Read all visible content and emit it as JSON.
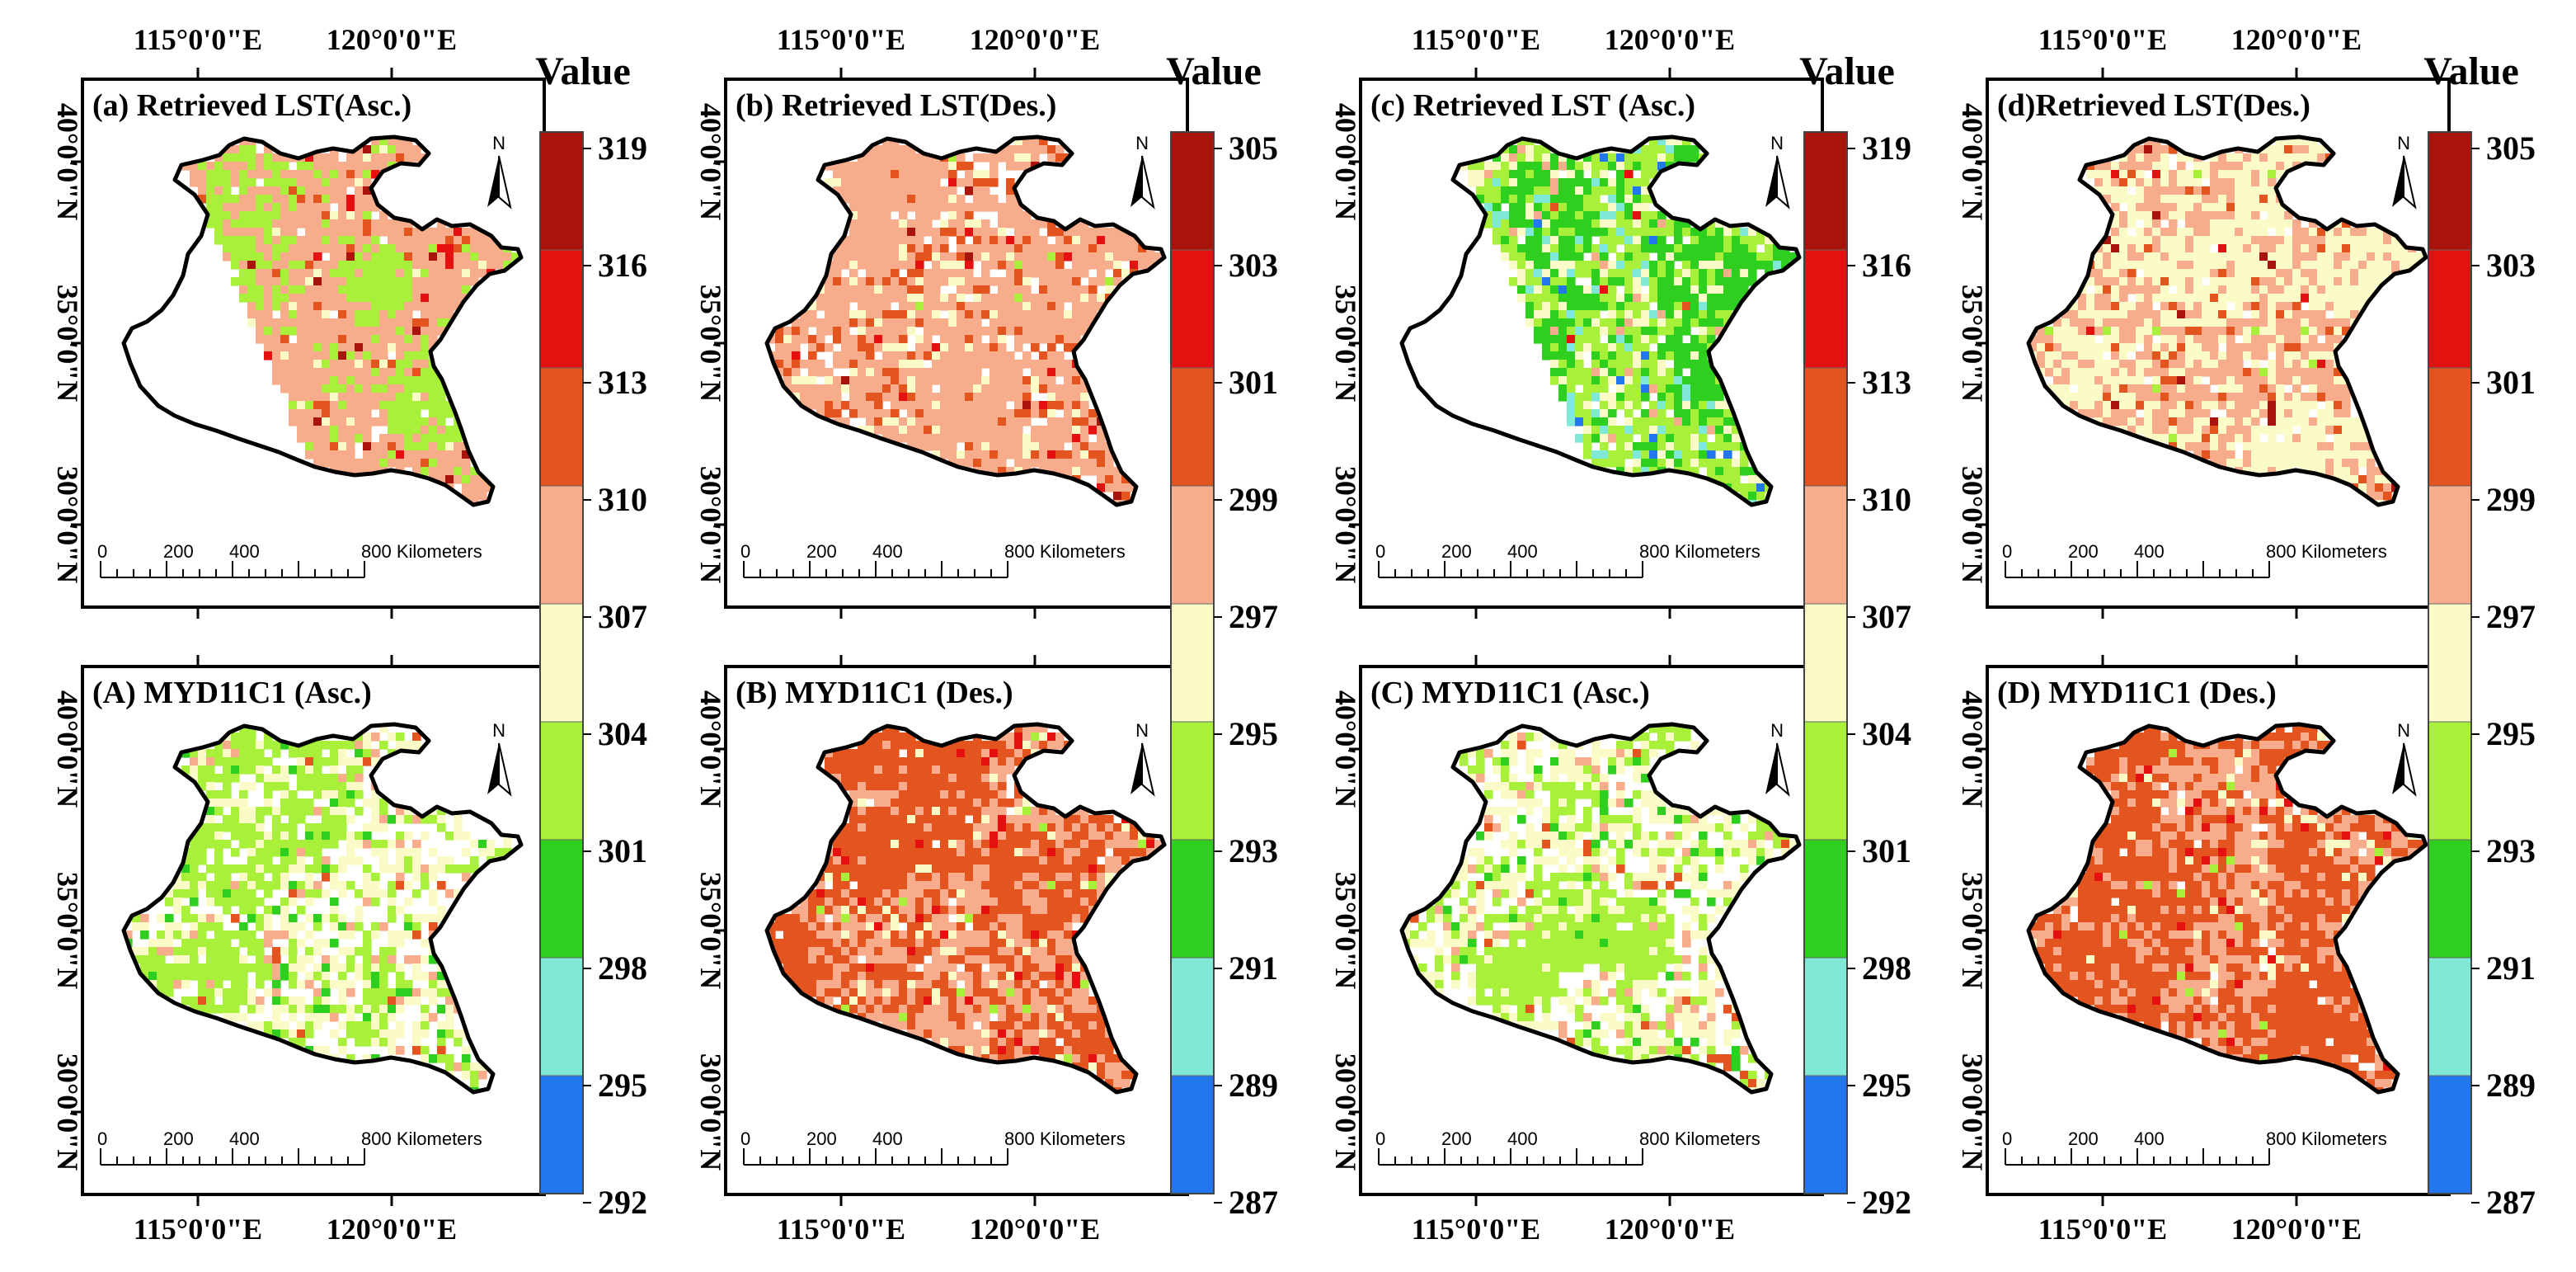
{
  "colors": {
    "c1": "#2277ee",
    "c2": "#7fe8d6",
    "c3": "#2fcf1f",
    "c4": "#a8f03a",
    "c5": "#fbfbc8",
    "c6": "#f7ad8c",
    "c7": "#e4541e",
    "c8": "#e51010",
    "c9": "#a8140c",
    "blank": "#ffffff",
    "outline": "#000000"
  },
  "legends": [
    {
      "title": "Value",
      "ticks": [
        "319",
        "316",
        "313",
        "310",
        "307",
        "304",
        "301",
        "298",
        "295",
        "292"
      ]
    },
    {
      "title": "Value",
      "ticks": [
        "305",
        "303",
        "301",
        "299",
        "297",
        "295",
        "293",
        "291",
        "289",
        "287"
      ]
    },
    {
      "title": "Value",
      "ticks": [
        "319",
        "316",
        "313",
        "310",
        "307",
        "304",
        "301",
        "298",
        "295",
        "292"
      ]
    },
    {
      "title": "Value",
      "ticks": [
        "305",
        "303",
        "301",
        "299",
        "297",
        "295",
        "293",
        "291",
        "289",
        "287"
      ]
    }
  ],
  "panels": [
    {
      "title": "(a) Retrieved LST(Asc.)",
      "lon_labels": [
        "115°0'0\"E",
        "120°0'0\"E"
      ],
      "lat_labels": [
        "40°0'0\"N",
        "35°0'0\"N",
        "30°0'0\"N"
      ],
      "north": "N",
      "scale": [
        "0",
        "200",
        "400",
        "800 Kilometers"
      ],
      "swath": "asc",
      "weights": {
        "blank": 0.04,
        "c4": 0.12,
        "c5": 0.04,
        "c6": 0.74,
        "c7": 0.03,
        "c8": 0.02,
        "c9": 0.01
      },
      "blob": "c4",
      "seed": 11
    },
    {
      "title": "(b) Retrieved LST(Des.)",
      "lon_labels": [
        "115°0'0\"E",
        "120°0'0\"E"
      ],
      "lat_labels": [
        "40°0'0\"N",
        "35°0'0\"N",
        "30°0'0\"N"
      ],
      "north": "N",
      "scale": [
        "0",
        "200",
        "400",
        "800 Kilometers"
      ],
      "swath": "full",
      "weights": {
        "blank": 0.12,
        "c4": 0.01,
        "c5": 0.12,
        "c6": 0.55,
        "c7": 0.17,
        "c8": 0.02,
        "c9": 0.01
      },
      "blob": "c6",
      "seed": 23
    },
    {
      "title": "(c) Retrieved LST (Asc.)",
      "lon_labels": [
        "115°0'0\"E",
        "120°0'0\"E"
      ],
      "lat_labels": [
        "40°0'0\"N",
        "35°0'0\"N",
        "30°0'0\"N"
      ],
      "north": "N",
      "scale": [
        "0",
        "200",
        "400",
        "800 Kilometers"
      ],
      "swath": "asc",
      "weights": {
        "blank": 0.06,
        "c1": 0.02,
        "c2": 0.08,
        "c3": 0.14,
        "c4": 0.46,
        "c5": 0.18,
        "c6": 0.04,
        "c7": 0.01,
        "c8": 0.01
      },
      "blob": "c3",
      "seed": 37
    },
    {
      "title": "(d)Retrieved LST(Des.)",
      "lon_labels": [
        "115°0'0\"E",
        "120°0'0\"E"
      ],
      "lat_labels": [
        "40°0'0\"N",
        "35°0'0\"N",
        "30°0'0\"N"
      ],
      "north": "N",
      "scale": [
        "0",
        "200",
        "400",
        "800 Kilometers"
      ],
      "swath": "full",
      "weights": {
        "blank": 0.07,
        "c4": 0.01,
        "c5": 0.32,
        "c6": 0.52,
        "c7": 0.06,
        "c8": 0.01,
        "c9": 0.01
      },
      "blob": "c5",
      "seed": 41
    },
    {
      "title": "(A) MYD11C1  (Asc.)",
      "lon_labels": [
        "115°0'0\"E",
        "120°0'0\"E"
      ],
      "lat_labels": [
        "40°0'0\"N",
        "35°0'0\"N",
        "30°0'0\"N"
      ],
      "north": "N",
      "scale": [
        "0",
        "200",
        "400",
        "800 Kilometers"
      ],
      "swath": "full",
      "weights": {
        "blank": 0.38,
        "c3": 0.05,
        "c4": 0.16,
        "c5": 0.32,
        "c6": 0.07,
        "c7": 0.02
      },
      "blob": "c4",
      "seed": 53
    },
    {
      "title": "(B) MYD11C1 (Des.)",
      "lon_labels": [
        "115°0'0\"E",
        "120°0'0\"E"
      ],
      "lat_labels": [
        "40°0'0\"N",
        "35°0'0\"N",
        "30°0'0\"N"
      ],
      "north": "N",
      "scale": [
        "0",
        "200",
        "400",
        "800 Kilometers"
      ],
      "swath": "full",
      "weights": {
        "blank": 0.03,
        "c4": 0.02,
        "c5": 0.06,
        "c6": 0.47,
        "c7": 0.38,
        "c8": 0.04
      },
      "blob": "c7",
      "seed": 67
    },
    {
      "title": "(C) MYD11C1 (Asc.)",
      "lon_labels": [
        "115°0'0\"E",
        "120°0'0\"E"
      ],
      "lat_labels": [
        "40°0'0\"N",
        "35°0'0\"N",
        "30°0'0\"N"
      ],
      "north": "N",
      "scale": [
        "0",
        "200",
        "400",
        "800 Kilometers"
      ],
      "swath": "full",
      "weights": {
        "blank": 0.38,
        "c3": 0.05,
        "c4": 0.16,
        "c5": 0.32,
        "c6": 0.07,
        "c7": 0.02
      },
      "blob": "c4",
      "seed": 71
    },
    {
      "title": "(D) MYD11C1 (Des.)",
      "lon_labels": [
        "115°0'0\"E",
        "120°0'0\"E"
      ],
      "lat_labels": [
        "40°0'0\"N",
        "35°0'0\"N",
        "30°0'0\"N"
      ],
      "north": "N",
      "scale": [
        "0",
        "200",
        "400",
        "800 Kilometers"
      ],
      "swath": "full",
      "weights": {
        "blank": 0.03,
        "c4": 0.02,
        "c5": 0.06,
        "c6": 0.47,
        "c7": 0.38,
        "c8": 0.04
      },
      "blob": "c7",
      "seed": 83
    }
  ]
}
